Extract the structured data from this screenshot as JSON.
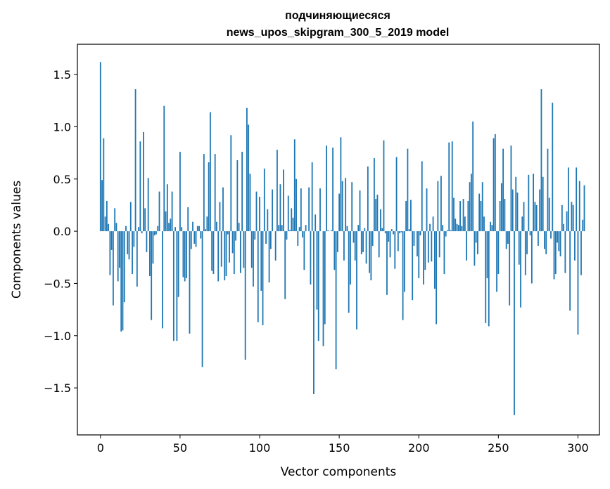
{
  "chart_data": {
    "type": "bar",
    "title_lines": [
      "подчиняющиесяся",
      "news_upos_skipgram_300_5_2019 model"
    ],
    "xlabel": "Vector components",
    "ylabel": "Components values",
    "xlim": [
      -14.5,
      313.5
    ],
    "ylim": [
      -1.95,
      1.79
    ],
    "xticks": [
      0,
      50,
      100,
      150,
      200,
      250,
      300
    ],
    "xtick_labels": [
      "0",
      "50",
      "100",
      "150",
      "200",
      "250",
      "300"
    ],
    "yticks": [
      -1.5,
      -1.0,
      -0.5,
      0.0,
      0.5,
      1.0,
      1.5
    ],
    "ytick_labels": [
      "−1.5",
      "−1.0",
      "−0.5",
      "0.0",
      "0.5",
      "1.0",
      "1.5"
    ],
    "bar_color": "#1f77b4",
    "x_start": 0,
    "values": [
      1.62,
      0.49,
      0.89,
      0.14,
      0.29,
      0.07,
      -0.42,
      -0.18,
      -0.71,
      0.22,
      0.08,
      -0.48,
      -0.35,
      -0.96,
      -0.95,
      -0.68,
      0.05,
      -0.22,
      -0.27,
      0.28,
      -0.41,
      -0.15,
      1.36,
      -0.53,
      0.04,
      0.86,
      -0.02,
      0.95,
      0.22,
      -0.2,
      0.51,
      -0.43,
      -0.85,
      -0.31,
      -0.04,
      -0.03,
      0.05,
      0.38,
      0.0,
      -0.93,
      1.2,
      0.19,
      0.45,
      0.08,
      0.12,
      0.38,
      -1.05,
      0.04,
      -1.05,
      -0.63,
      0.76,
      0.04,
      -0.44,
      -0.48,
      -0.45,
      0.23,
      -0.98,
      -0.17,
      0.09,
      -0.12,
      -0.15,
      0.05,
      0.05,
      -0.07,
      -1.3,
      0.74,
      0.02,
      0.14,
      0.66,
      1.14,
      -0.38,
      -0.41,
      0.74,
      0.09,
      -0.48,
      0.28,
      -0.34,
      0.42,
      -0.47,
      -0.43,
      -0.03,
      -0.3,
      0.92,
      -0.21,
      -0.41,
      -0.09,
      0.68,
      0.08,
      -0.4,
      0.76,
      -0.35,
      -1.23,
      1.18,
      1.02,
      0.55,
      -0.35,
      -0.53,
      -0.08,
      0.38,
      -0.87,
      0.33,
      -0.57,
      -0.9,
      0.6,
      -0.12,
      0.21,
      -0.49,
      -0.17,
      0.4,
      0.0,
      -0.28,
      0.78,
      0.06,
      0.45,
      0.06,
      0.59,
      -0.65,
      -0.08,
      0.34,
      0.01,
      0.22,
      0.13,
      0.88,
      0.5,
      -0.14,
      0.04,
      0.41,
      -0.06,
      -0.37,
      0.06,
      0.0,
      0.42,
      -0.51,
      0.66,
      -1.56,
      0.16,
      -0.75,
      -1.05,
      0.41,
      0.0,
      -1.1,
      -0.89,
      0.82,
      0.01,
      0.0,
      0.01,
      0.8,
      -0.37,
      -1.32,
      -0.2,
      0.36,
      0.9,
      0.48,
      -0.28,
      0.51,
      0.05,
      -0.78,
      -0.51,
      0.47,
      -0.11,
      -0.28,
      -0.94,
      0.06,
      0.39,
      -0.22,
      -0.2,
      0.03,
      -0.31,
      0.62,
      -0.4,
      -0.47,
      -0.14,
      0.7,
      0.31,
      0.35,
      -0.25,
      0.21,
      0.03,
      0.87,
      -0.02,
      -0.61,
      -0.1,
      -0.25,
      0.02,
      -0.03,
      -0.36,
      0.71,
      -0.19,
      -0.02,
      -0.01,
      -0.85,
      -0.58,
      0.29,
      0.79,
      0.02,
      0.3,
      -0.66,
      -0.14,
      0.0,
      -0.24,
      -0.45,
      -0.04,
      0.67,
      -0.51,
      -0.37,
      0.41,
      -0.3,
      0.07,
      -0.29,
      0.14,
      -0.55,
      -0.89,
      0.48,
      -0.25,
      0.53,
      0.06,
      -0.41,
      -0.05,
      0.01,
      0.85,
      0.01,
      0.86,
      0.32,
      0.12,
      0.07,
      0.06,
      0.29,
      0.05,
      0.31,
      0.14,
      -0.28,
      0.29,
      0.47,
      0.55,
      1.05,
      -0.33,
      -0.11,
      -0.22,
      0.36,
      0.29,
      0.47,
      0.14,
      -0.88,
      -0.45,
      -0.91,
      0.09,
      0.06,
      0.89,
      0.93,
      -0.58,
      -0.41,
      0.29,
      0.46,
      0.79,
      0.31,
      -0.17,
      -0.12,
      -0.71,
      0.82,
      0.4,
      -1.76,
      0.52,
      0.37,
      -0.32,
      -0.73,
      0.14,
      0.28,
      -0.42,
      -0.22,
      0.54,
      -0.04,
      -0.5,
      0.55,
      0.28,
      0.25,
      -0.14,
      0.4,
      1.36,
      0.52,
      -0.17,
      -0.22,
      0.79,
      0.32,
      -0.07,
      1.23,
      -0.46,
      -0.41,
      -0.11,
      -0.19,
      -0.24,
      0.25,
      0.07,
      -0.4,
      0.19,
      0.61,
      -0.76,
      0.28,
      0.25,
      -0.28,
      0.61,
      -0.99,
      0.48,
      -0.42,
      0.11,
      0.44
    ]
  }
}
